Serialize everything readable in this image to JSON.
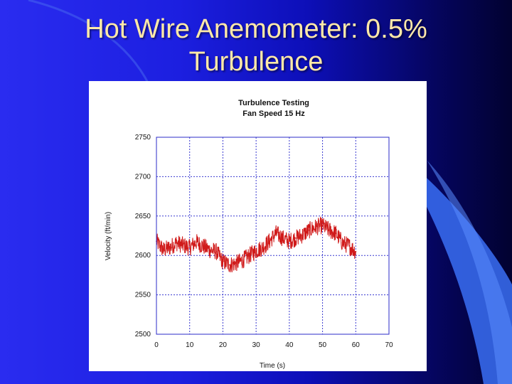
{
  "slide": {
    "title_line1": "Hot Wire Anemometer: 0.5%",
    "title_line2": "Turbulence",
    "colors": {
      "background": "#1c1fe0",
      "title": "#ffe9a8",
      "series": "#d01a1a",
      "grid": "#3a3ad0"
    }
  },
  "chart_data": {
    "type": "line",
    "title": "Turbulence Testing",
    "subtitle": "Fan Speed 15 Hz",
    "xlabel": "Time (s)",
    "ylabel": "Velocity (ft/min)",
    "xlim": [
      0,
      70
    ],
    "ylim": [
      2500,
      2750
    ],
    "xticks": [
      0,
      10,
      20,
      30,
      40,
      50,
      60,
      70
    ],
    "yticks": [
      2500,
      2550,
      2600,
      2650,
      2700,
      2750
    ],
    "grid": true,
    "series": [
      {
        "color": "#d01a1a",
        "x": [
          0,
          2,
          4,
          6,
          8,
          10,
          12,
          14,
          16,
          18,
          20,
          22,
          24,
          26,
          28,
          30,
          32,
          34,
          36,
          38,
          40,
          42,
          44,
          46,
          48,
          50,
          52,
          54,
          56,
          58,
          60
        ],
        "y": [
          2618,
          2607,
          2610,
          2616,
          2613,
          2610,
          2617,
          2612,
          2607,
          2605,
          2592,
          2588,
          2590,
          2594,
          2600,
          2606,
          2610,
          2618,
          2628,
          2622,
          2618,
          2622,
          2626,
          2632,
          2636,
          2638,
          2632,
          2628,
          2616,
          2612,
          2605
        ]
      }
    ]
  }
}
